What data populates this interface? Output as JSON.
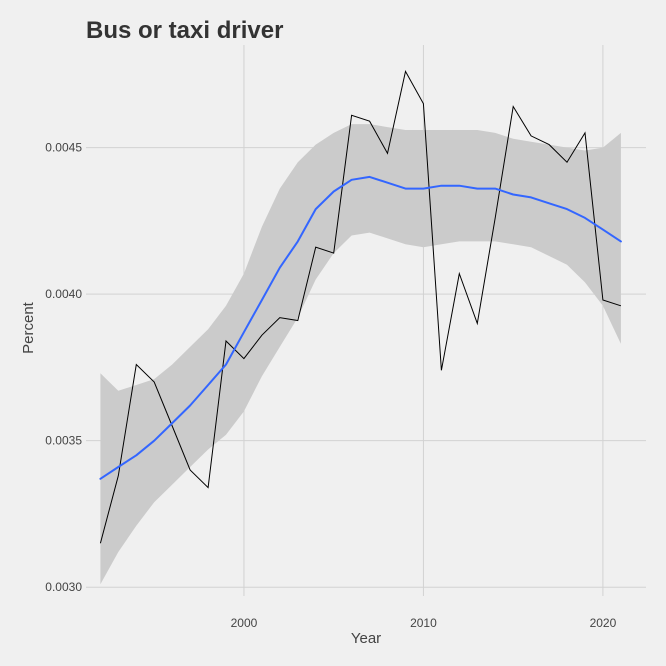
{
  "colors": {
    "background": "#f0f0f0",
    "grid": "#d2d2d2",
    "band": "#cbcbcb",
    "smooth": "#3366ff",
    "series": "#000000",
    "text": "#444444",
    "title": "#333333"
  },
  "chart_data": {
    "type": "line",
    "title": "Bus or taxi driver",
    "xlabel": "Year",
    "ylabel": "Percent",
    "xlim": [
      1991.2,
      2022.4
    ],
    "ylim": [
      0.00297,
      0.00485
    ],
    "x_ticks": [
      2000,
      2010,
      2020
    ],
    "x_tick_labels": [
      "2000",
      "2010",
      "2020"
    ],
    "y_ticks": [
      0.003,
      0.0035,
      0.004,
      0.0045
    ],
    "y_tick_labels": [
      "0.0030",
      "0.0035",
      "0.0040",
      "0.0045"
    ],
    "grid": true,
    "legend": "none",
    "series": [
      {
        "type": "line",
        "color": "#000000",
        "x": [
          1992,
          1993,
          1994,
          1995,
          1996,
          1997,
          1998,
          1999,
          2000,
          2001,
          2002,
          2003,
          2004,
          2005,
          2006,
          2007,
          2008,
          2009,
          2010,
          2011,
          2012,
          2013,
          2014,
          2015,
          2016,
          2017,
          2018,
          2019,
          2020,
          2021
        ],
        "y": [
          0.00315,
          0.00338,
          0.00376,
          0.0037,
          0.00355,
          0.0034,
          0.00334,
          0.00384,
          0.00378,
          0.00386,
          0.00392,
          0.00391,
          0.00416,
          0.00414,
          0.00461,
          0.00459,
          0.00448,
          0.00476,
          0.00465,
          0.00374,
          0.00407,
          0.0039,
          0.00426,
          0.00464,
          0.00454,
          0.00451,
          0.00445,
          0.00455,
          0.00398,
          0.00396
        ]
      },
      {
        "type": "smooth",
        "color": "#3366ff",
        "x": [
          1992,
          1993,
          1994,
          1995,
          1996,
          1997,
          1998,
          1999,
          2000,
          2001,
          2002,
          2003,
          2004,
          2005,
          2006,
          2007,
          2008,
          2009,
          2010,
          2011,
          2012,
          2013,
          2014,
          2015,
          2016,
          2017,
          2018,
          2019,
          2020,
          2021
        ],
        "y": [
          0.00337,
          0.00341,
          0.00345,
          0.0035,
          0.00356,
          0.00362,
          0.00369,
          0.00376,
          0.00387,
          0.00398,
          0.00409,
          0.00418,
          0.00429,
          0.00435,
          0.00439,
          0.0044,
          0.00438,
          0.00436,
          0.00436,
          0.00437,
          0.00437,
          0.00436,
          0.00436,
          0.00434,
          0.00433,
          0.00431,
          0.00429,
          0.00426,
          0.00422,
          0.00418
        ],
        "ci_lower": [
          0.00301,
          0.00312,
          0.00321,
          0.00329,
          0.00335,
          0.00341,
          0.00347,
          0.00352,
          0.0036,
          0.00372,
          0.00382,
          0.00392,
          0.00405,
          0.00414,
          0.0042,
          0.00421,
          0.00419,
          0.00417,
          0.00416,
          0.00417,
          0.00418,
          0.00418,
          0.00418,
          0.00417,
          0.00416,
          0.00413,
          0.0041,
          0.00404,
          0.00396,
          0.00383
        ],
        "ci_upper": [
          0.00373,
          0.00367,
          0.00369,
          0.00371,
          0.00376,
          0.00382,
          0.00388,
          0.00396,
          0.00407,
          0.00423,
          0.00436,
          0.00445,
          0.00451,
          0.00455,
          0.00458,
          0.00458,
          0.00457,
          0.00456,
          0.00456,
          0.00456,
          0.00456,
          0.00456,
          0.00455,
          0.00453,
          0.00452,
          0.00451,
          0.0045,
          0.00449,
          0.0045,
          0.00455
        ]
      }
    ]
  }
}
